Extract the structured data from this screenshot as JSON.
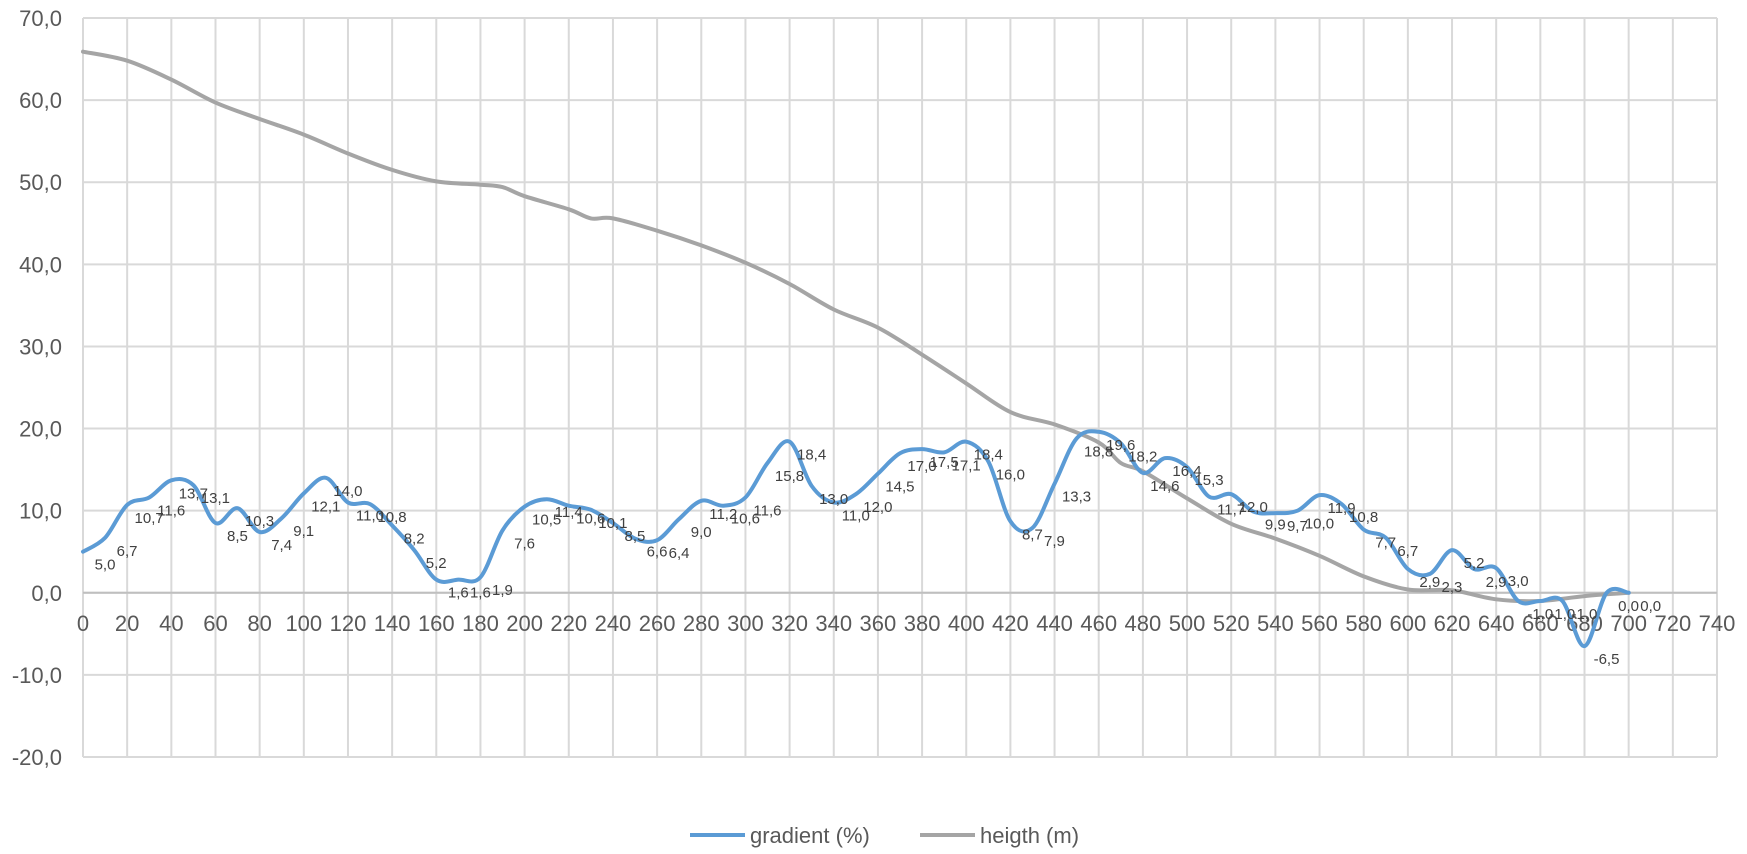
{
  "chart_data": {
    "type": "line",
    "title": "",
    "xlabel": "",
    "ylabel": "",
    "xlim": [
      0,
      740
    ],
    "ylim": [
      -20,
      70
    ],
    "x_ticks": [
      "0",
      "20",
      "40",
      "60",
      "80",
      "100",
      "120",
      "140",
      "160",
      "180",
      "200",
      "220",
      "240",
      "260",
      "280",
      "300",
      "320",
      "340",
      "360",
      "380",
      "400",
      "420",
      "440",
      "460",
      "480",
      "500",
      "520",
      "540",
      "560",
      "580",
      "600",
      "620",
      "640",
      "660",
      "680",
      "700",
      "720",
      "740"
    ],
    "y_ticks": [
      "70,0",
      "60,0",
      "50,0",
      "40,0",
      "30,0",
      "20,0",
      "10,0",
      "0,0",
      "-10,0",
      "-20,0"
    ],
    "grid": true,
    "legend_position": "bottom",
    "series": [
      {
        "name": "gradient (%)",
        "color": "#5B9BD5",
        "x": [
          0,
          10,
          20,
          30,
          40,
          50,
          60,
          70,
          80,
          90,
          100,
          110,
          120,
          130,
          140,
          150,
          160,
          170,
          180,
          190,
          200,
          210,
          220,
          230,
          240,
          250,
          260,
          270,
          280,
          290,
          300,
          310,
          320,
          330,
          340,
          350,
          360,
          370,
          380,
          390,
          400,
          410,
          420,
          430,
          440,
          450,
          460,
          470,
          480,
          490,
          500,
          510,
          520,
          530,
          540,
          550,
          560,
          570,
          580,
          590,
          600,
          610,
          620,
          630,
          640,
          650,
          660,
          670,
          680,
          690,
          700
        ],
        "values": [
          5.0,
          6.7,
          10.7,
          11.6,
          13.7,
          13.1,
          8.5,
          10.3,
          7.4,
          9.1,
          12.1,
          14.0,
          11.0,
          10.8,
          8.2,
          5.2,
          1.6,
          1.6,
          1.9,
          7.6,
          10.5,
          11.4,
          10.6,
          10.1,
          8.5,
          6.6,
          6.4,
          9.0,
          11.2,
          10.6,
          11.6,
          15.8,
          18.4,
          13.0,
          11.0,
          12.0,
          14.5,
          17.0,
          17.5,
          17.1,
          18.4,
          16.0,
          8.7,
          7.9,
          13.3,
          18.8,
          19.6,
          18.2,
          14.6,
          16.4,
          15.3,
          11.7,
          12.0,
          9.9,
          9.7,
          10.0,
          11.9,
          10.8,
          7.7,
          6.7,
          2.9,
          2.3,
          5.2,
          2.9,
          3.0,
          -1.0,
          -1.0,
          -1.0,
          -6.5,
          0.0,
          0.0
        ],
        "labels": [
          "5,0",
          "6,7",
          "10,7",
          "11,6",
          "13,7",
          "13,1",
          "8,5",
          "10,3",
          "7,4",
          "9,1",
          "12,1",
          "14,0",
          "11,0",
          "10,8",
          "8,2",
          "5,2",
          "1,6",
          "1,6",
          "1,9",
          "7,6",
          "10,5",
          "11,4",
          "10,6",
          "10,1",
          "8,5",
          "6,6",
          "6,4",
          "9,0",
          "11,2",
          "10,6",
          "11,6",
          "15,8",
          "18,4",
          "13,0",
          "11,0",
          "12,0",
          "14,5",
          "17,0",
          "17,5",
          "17,1",
          "18,4",
          "16,0",
          "8,7",
          "7,9",
          "13,3",
          "18,8",
          "19,6",
          "18,2",
          "14,6",
          "16,4",
          "15,3",
          "11,7",
          "12,0",
          "9,9",
          "9,7",
          "10,0",
          "11,9",
          "10,8",
          "7,7",
          "6,7",
          "2,9",
          "2,3",
          "5,2",
          "2,9",
          "3,0",
          "-1,0",
          "-1,0",
          "-1,0",
          "-6,5",
          "0,0",
          "0,0"
        ]
      },
      {
        "name": "heigth (m)",
        "color": "#A5A5A5",
        "x": [
          0,
          20,
          40,
          60,
          80,
          100,
          120,
          140,
          160,
          180,
          190,
          200,
          220,
          230,
          240,
          260,
          280,
          300,
          320,
          340,
          360,
          380,
          400,
          420,
          440,
          460,
          470,
          480,
          500,
          520,
          540,
          560,
          580,
          600,
          620,
          640,
          660,
          680,
          700
        ],
        "values": [
          65.9,
          64.8,
          62.5,
          59.7,
          57.7,
          55.8,
          53.5,
          51.5,
          50.1,
          49.7,
          49.4,
          48.3,
          46.7,
          45.6,
          45.6,
          44.1,
          42.3,
          40.2,
          37.6,
          34.5,
          32.3,
          29.0,
          25.5,
          22.0,
          20.5,
          18.3,
          15.8,
          14.8,
          11.5,
          8.4,
          6.6,
          4.5,
          2.0,
          0.4,
          0.3,
          -0.8,
          -1.0,
          -0.4,
          0.0
        ]
      }
    ]
  }
}
